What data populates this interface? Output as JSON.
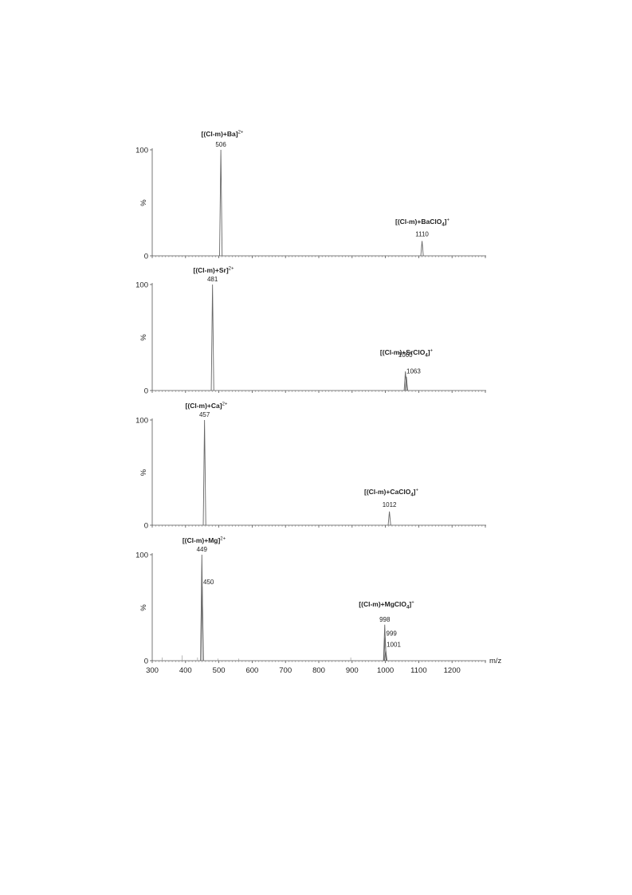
{
  "chart_data": {
    "type": "line",
    "subtype": "mass-spectrum-stack",
    "xlabel": "m/z",
    "xlim": [
      300,
      1300
    ],
    "x_ticks": [
      300,
      400,
      500,
      600,
      700,
      800,
      900,
      1000,
      1100,
      1200
    ],
    "panels": [
      {
        "ylabel": "%",
        "ylim": [
          0,
          100
        ],
        "y_ticks": [
          0,
          100
        ],
        "peaks": [
          {
            "x": 506,
            "y": 100,
            "label": "506"
          },
          {
            "x": 1110,
            "y": 14,
            "label": "1110"
          }
        ],
        "annotations": [
          {
            "ion": "[(Cl-m)+Ba]",
            "charge": "2+",
            "x": 506
          },
          {
            "ion": "[(Cl-m)+BaClO",
            "sub": "4",
            "suffix": "]",
            "charge": "+",
            "x": 1110
          }
        ]
      },
      {
        "ylabel": "%",
        "ylim": [
          0,
          100
        ],
        "y_ticks": [
          0,
          100
        ],
        "peaks": [
          {
            "x": 481,
            "y": 100,
            "label": "481"
          },
          {
            "x": 1060,
            "y": 18,
            "label": "1060"
          },
          {
            "x": 1063,
            "y": 13,
            "label": "1063"
          }
        ],
        "annotations": [
          {
            "ion": "[(Cl-m)+Sr]",
            "charge": "2+",
            "x": 481
          },
          {
            "ion": "[(Cl-m)+SrClO",
            "sub": "4",
            "suffix": "]",
            "charge": "+",
            "x": 1060
          }
        ]
      },
      {
        "ylabel": "%",
        "ylim": [
          0,
          100
        ],
        "y_ticks": [
          0,
          100
        ],
        "peaks": [
          {
            "x": 457,
            "y": 100,
            "label": "457"
          },
          {
            "x": 1012,
            "y": 13,
            "label": "1012"
          }
        ],
        "annotations": [
          {
            "ion": "[(Cl-m)+Ca]",
            "charge": "2+",
            "x": 457
          },
          {
            "ion": "[(Cl-m)+CaClO",
            "sub": "4",
            "suffix": "]",
            "charge": "+",
            "x": 1012
          }
        ]
      },
      {
        "ylabel": "%",
        "ylim": [
          0,
          100
        ],
        "y_ticks": [
          0,
          100
        ],
        "peaks": [
          {
            "x": 449,
            "y": 100,
            "label": "449"
          },
          {
            "x": 450,
            "y": 70,
            "label": "450"
          },
          {
            "x": 998,
            "y": 34,
            "label": "998"
          },
          {
            "x": 999,
            "y": 22,
            "label": "999"
          },
          {
            "x": 1001,
            "y": 10,
            "label": "1001"
          }
        ],
        "annotations": [
          {
            "ion": "[(Cl-m)+Mg]",
            "charge": "2+",
            "x": 449
          },
          {
            "ion": "[(Cl-m)+MgClO",
            "sub": "4",
            "suffix": "]",
            "charge": "+",
            "x": 998
          }
        ],
        "noise": [
          {
            "x": 330,
            "y": 3
          },
          {
            "x": 390,
            "y": 5
          },
          {
            "x": 436,
            "y": 3
          },
          {
            "x": 497,
            "y": 2
          },
          {
            "x": 560,
            "y": 2
          },
          {
            "x": 896,
            "y": 3
          }
        ]
      }
    ]
  }
}
